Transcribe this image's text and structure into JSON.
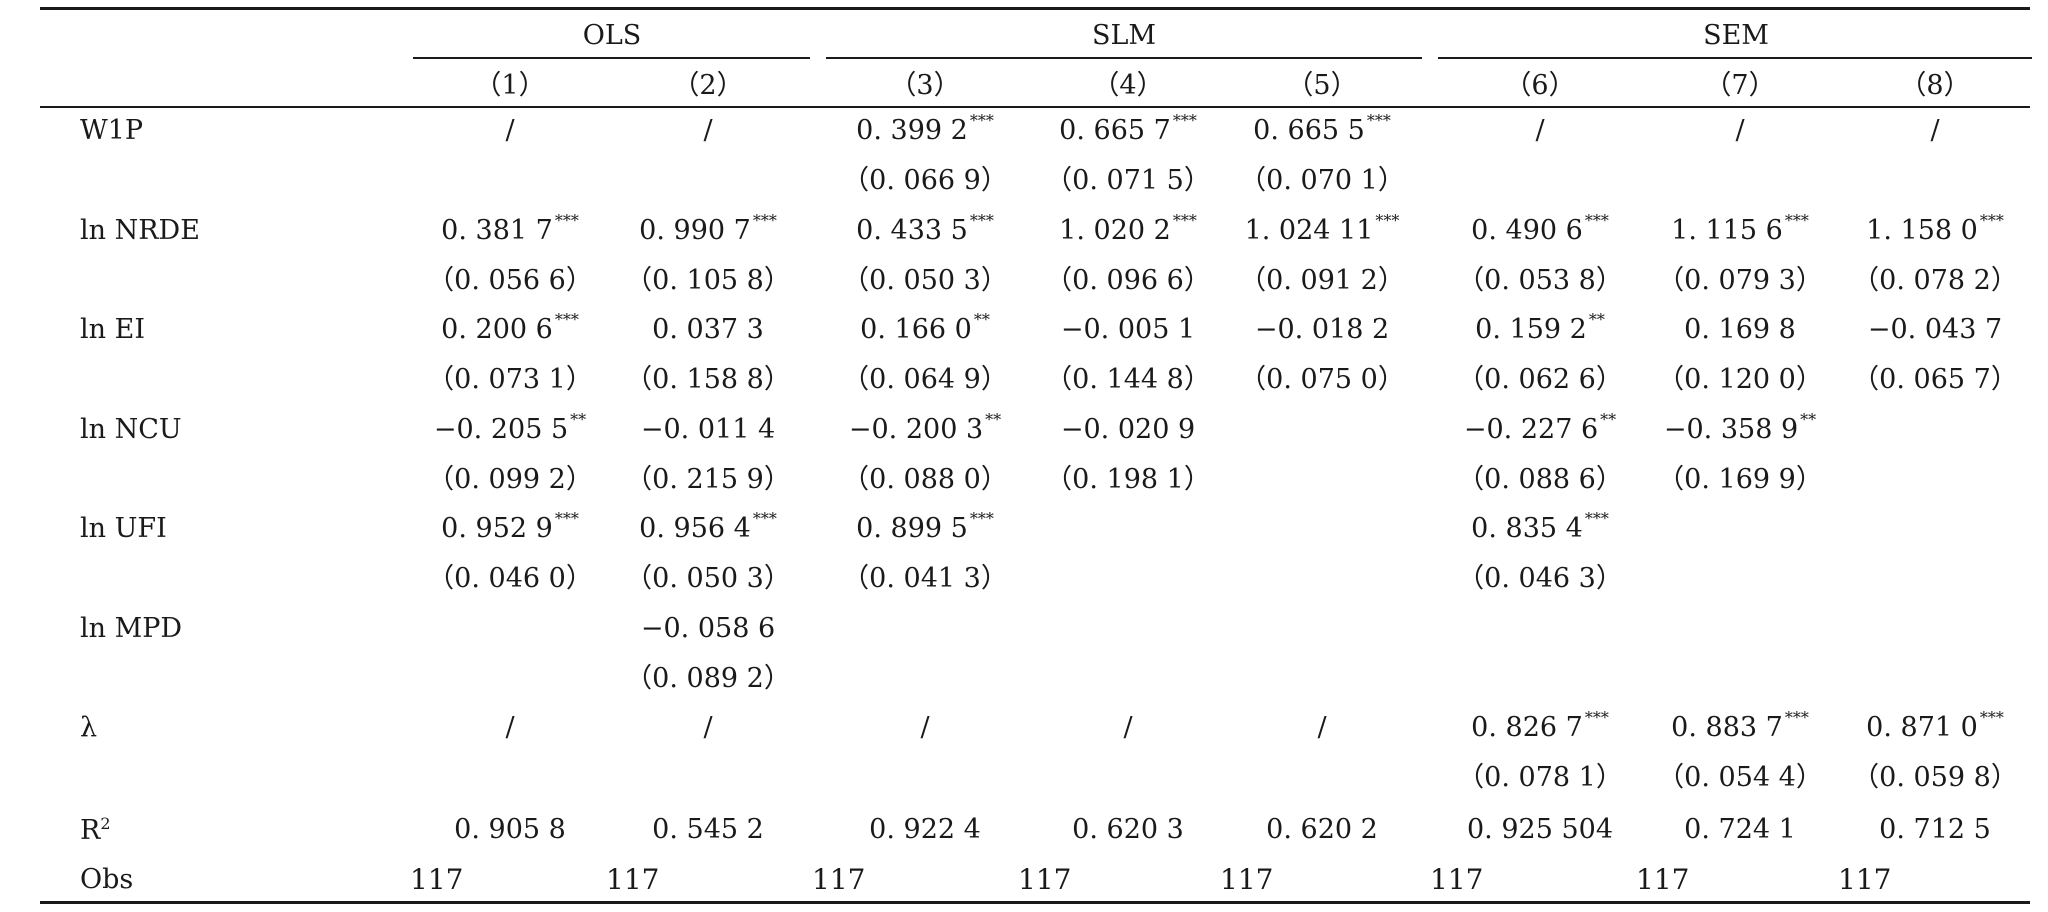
{
  "groups": [
    "OLS",
    "SLM",
    "SEM"
  ],
  "columns": [
    "（1）",
    "（2）",
    "（3）",
    "（4）",
    "（5）",
    "（6）",
    "（7）",
    "（8）"
  ],
  "rows": [
    {
      "label": "W1P",
      "coef": [
        "/",
        "/",
        "0. 399 2",
        "0. 665 7",
        "0. 665 5",
        "/",
        "/",
        "/"
      ],
      "stars": [
        "",
        "",
        "***",
        "***",
        "***",
        "",
        "",
        ""
      ],
      "se": [
        "",
        "",
        "（0. 066 9）",
        "（0. 071 5）",
        "（0. 070 1）",
        "",
        "",
        ""
      ]
    },
    {
      "label": "ln NRDE",
      "coef": [
        "0. 381 7",
        "0. 990 7",
        "0. 433 5",
        "1. 020 2",
        "1. 024 11",
        "0. 490 6",
        "1. 115 6",
        "1. 158 0"
      ],
      "stars": [
        "***",
        "***",
        "***",
        "***",
        "***",
        "***",
        "***",
        "***"
      ],
      "se": [
        "（0. 056 6）",
        "（0. 105 8）",
        "（0. 050 3）",
        "（0. 096 6）",
        "（0. 091 2）",
        "（0. 053 8）",
        "（0. 079 3）",
        "（0. 078 2）"
      ]
    },
    {
      "label": "ln EI",
      "coef": [
        "0. 200 6",
        "0. 037 3",
        "0. 166 0",
        "−0. 005 1",
        "−0. 018 2",
        "0. 159 2",
        "0. 169 8",
        "−0. 043 7"
      ],
      "stars": [
        "***",
        "",
        "**",
        "",
        "",
        "**",
        "",
        ""
      ],
      "se": [
        "（0. 073 1）",
        "（0. 158 8）",
        "（0. 064 9）",
        "（0. 144 8）",
        "（0. 075 0）",
        "（0. 062 6）",
        "（0. 120 0）",
        "（0. 065 7）"
      ]
    },
    {
      "label": "ln NCU",
      "coef": [
        "−0. 205 5",
        "−0. 011 4",
        "−0. 200 3",
        "−0. 020 9",
        "",
        "−0. 227 6",
        "−0. 358 9",
        ""
      ],
      "stars": [
        "**",
        "",
        "**",
        "",
        "",
        "**",
        "**",
        ""
      ],
      "se": [
        "（0. 099 2）",
        "（0. 215 9）",
        "（0. 088 0）",
        "（0. 198 1）",
        "",
        "（0. 088 6）",
        "（0. 169 9）",
        ""
      ]
    },
    {
      "label": "ln UFI",
      "coef": [
        "0. 952 9",
        "0. 956 4",
        "0. 899 5",
        "",
        "",
        "0. 835 4",
        "",
        ""
      ],
      "stars": [
        "***",
        "***",
        "***",
        "",
        "",
        "***",
        "",
        ""
      ],
      "se": [
        "（0. 046 0）",
        "（0. 050 3）",
        "（0. 041 3）",
        "",
        "",
        "（0. 046 3）",
        "",
        ""
      ]
    },
    {
      "label": "ln MPD",
      "coef": [
        "",
        "−0. 058 6",
        "",
        "",
        "",
        "",
        "",
        ""
      ],
      "stars": [
        "",
        "",
        "",
        "",
        "",
        "",
        "",
        ""
      ],
      "se": [
        "",
        "（0. 089 2）",
        "",
        "",
        "",
        "",
        "",
        ""
      ]
    },
    {
      "label": "λ",
      "coef": [
        "/",
        "/",
        "/",
        "/",
        "/",
        "0. 826 7",
        "0. 883 7",
        "0. 871 0"
      ],
      "stars": [
        "",
        "",
        "",
        "",
        "",
        "***",
        "***",
        "***"
      ],
      "se": [
        "",
        "",
        "",
        "",
        "",
        "（0. 078 1）",
        "（0. 054 4）",
        "（0. 059 8）"
      ]
    }
  ],
  "r2": {
    "label": "R",
    "sup": "2",
    "values": [
      "0. 905 8",
      "0. 545 2",
      "0. 922 4",
      "0. 620 3",
      "0. 620 2",
      "0. 925 504",
      "0. 724 1",
      "0. 712 5"
    ]
  },
  "obs": {
    "label": "Obs",
    "values": [
      "117",
      "117",
      "117",
      "117",
      "117",
      "117",
      "117",
      "117"
    ]
  }
}
